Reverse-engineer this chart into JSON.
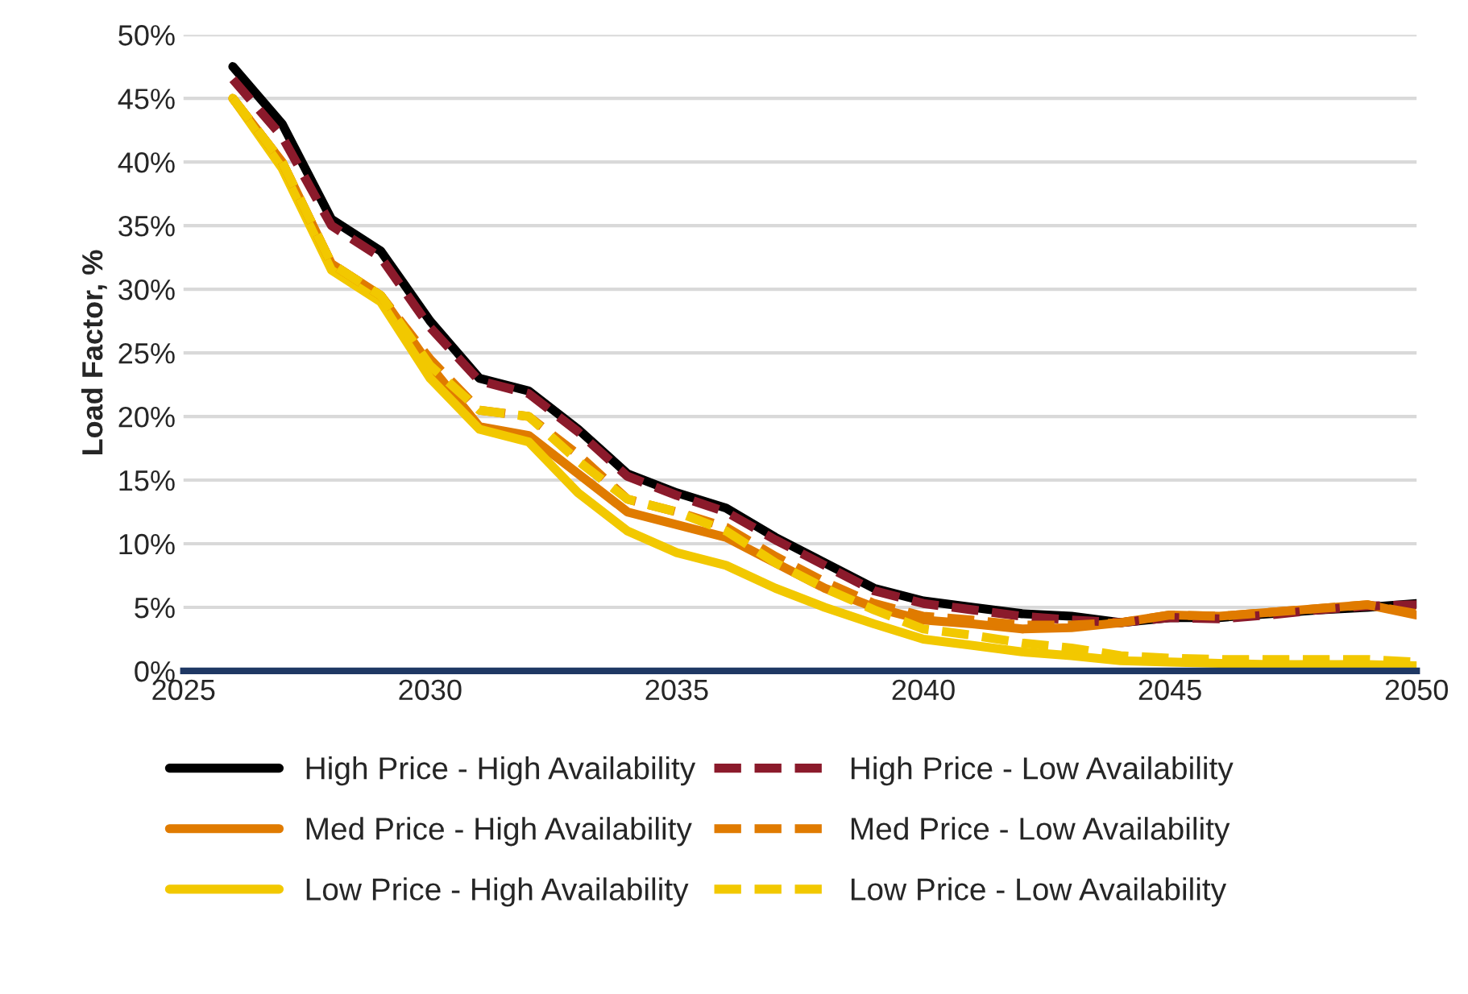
{
  "chart_data": {
    "type": "line",
    "ylabel": "Load Factor, %",
    "x": [
      2026,
      2027,
      2028,
      2029,
      2030,
      2031,
      2032,
      2033,
      2034,
      2035,
      2036,
      2037,
      2038,
      2039,
      2040,
      2041,
      2042,
      2043,
      2044,
      2045,
      2046,
      2047,
      2048,
      2049,
      2050
    ],
    "series": [
      {
        "name": "High Price - High Availability",
        "color": "#000000",
        "line_style": "solid",
        "values": [
          47.5,
          43,
          35.5,
          33,
          27.5,
          23,
          22,
          19,
          15.5,
          14,
          12.8,
          10.5,
          8.5,
          6.5,
          5.5,
          5,
          4.5,
          4.3,
          3.8,
          4.2,
          4.2,
          4.5,
          4.8,
          5,
          5.3
        ]
      },
      {
        "name": "Med Price - High Availability",
        "color": "#e07b00",
        "line_style": "solid",
        "values": [
          45,
          40,
          32,
          29.5,
          24,
          19.2,
          18.5,
          15.5,
          12.5,
          11.5,
          10.5,
          8.5,
          6.5,
          5,
          4,
          3.7,
          3.3,
          3.4,
          3.8,
          4.4,
          4.3,
          4.6,
          4.9,
          5.2,
          4.4
        ]
      },
      {
        "name": "Low Price - High Availability",
        "color": "#f2c800",
        "line_style": "solid",
        "values": [
          45,
          39.5,
          31.5,
          29,
          23,
          19,
          18,
          14,
          11,
          9.3,
          8.3,
          6.5,
          5,
          3.7,
          2.5,
          2,
          1.5,
          1.2,
          0.8,
          0.7,
          0.6,
          0.5,
          0.5,
          0.5,
          0.4
        ]
      },
      {
        "name": "High Price - Low Availability",
        "color": "#8b1a2b",
        "line_style": "dashed",
        "values": [
          46.5,
          42,
          35,
          32.5,
          27,
          22.8,
          21.8,
          18.8,
          15.3,
          13.8,
          12.5,
          10.3,
          8.3,
          6.3,
          5.3,
          4.8,
          4.3,
          4.0,
          3.8,
          4.2,
          4.1,
          4.4,
          4.8,
          5.1,
          5.2
        ]
      },
      {
        "name": "Med Price - Low Availability",
        "color": "#e07b00",
        "line_style": "dashed",
        "values": [
          45,
          40,
          32,
          29.5,
          24.5,
          20.5,
          20,
          17,
          13.5,
          12.5,
          11.3,
          9,
          7,
          5.3,
          4.3,
          4,
          3.6,
          3.6,
          3.8,
          4.4,
          4.3,
          4.6,
          4.9,
          5.2,
          4.5
        ]
      },
      {
        "name": "Low Price - Low Availability",
        "color": "#f2c800",
        "line_style": "dashed",
        "values": [
          45,
          40,
          32,
          29.5,
          24,
          20.5,
          20,
          16.5,
          13.5,
          12.5,
          11,
          8.5,
          6.5,
          4.8,
          3.3,
          2.8,
          2.2,
          1.8,
          1.2,
          1,
          0.9,
          0.9,
          0.9,
          0.9,
          0.7
        ]
      }
    ],
    "xlim": [
      2025,
      2050
    ],
    "xticks": [
      2025,
      2030,
      2035,
      2040,
      2045,
      2050
    ],
    "ylim": [
      0,
      50
    ],
    "yticks": [
      {
        "value": 0,
        "label": "0%"
      },
      {
        "value": 5,
        "label": "5%"
      },
      {
        "value": 10,
        "label": "10%"
      },
      {
        "value": 15,
        "label": "15%"
      },
      {
        "value": 20,
        "label": "20%"
      },
      {
        "value": 25,
        "label": "25%"
      },
      {
        "value": 30,
        "label": "30%"
      },
      {
        "value": 35,
        "label": "35%"
      },
      {
        "value": 40,
        "label": "40%"
      },
      {
        "value": 45,
        "label": "45%"
      },
      {
        "value": 50,
        "label": "50%"
      }
    ],
    "grid": "y",
    "legend": "bottom",
    "marker": "none"
  }
}
